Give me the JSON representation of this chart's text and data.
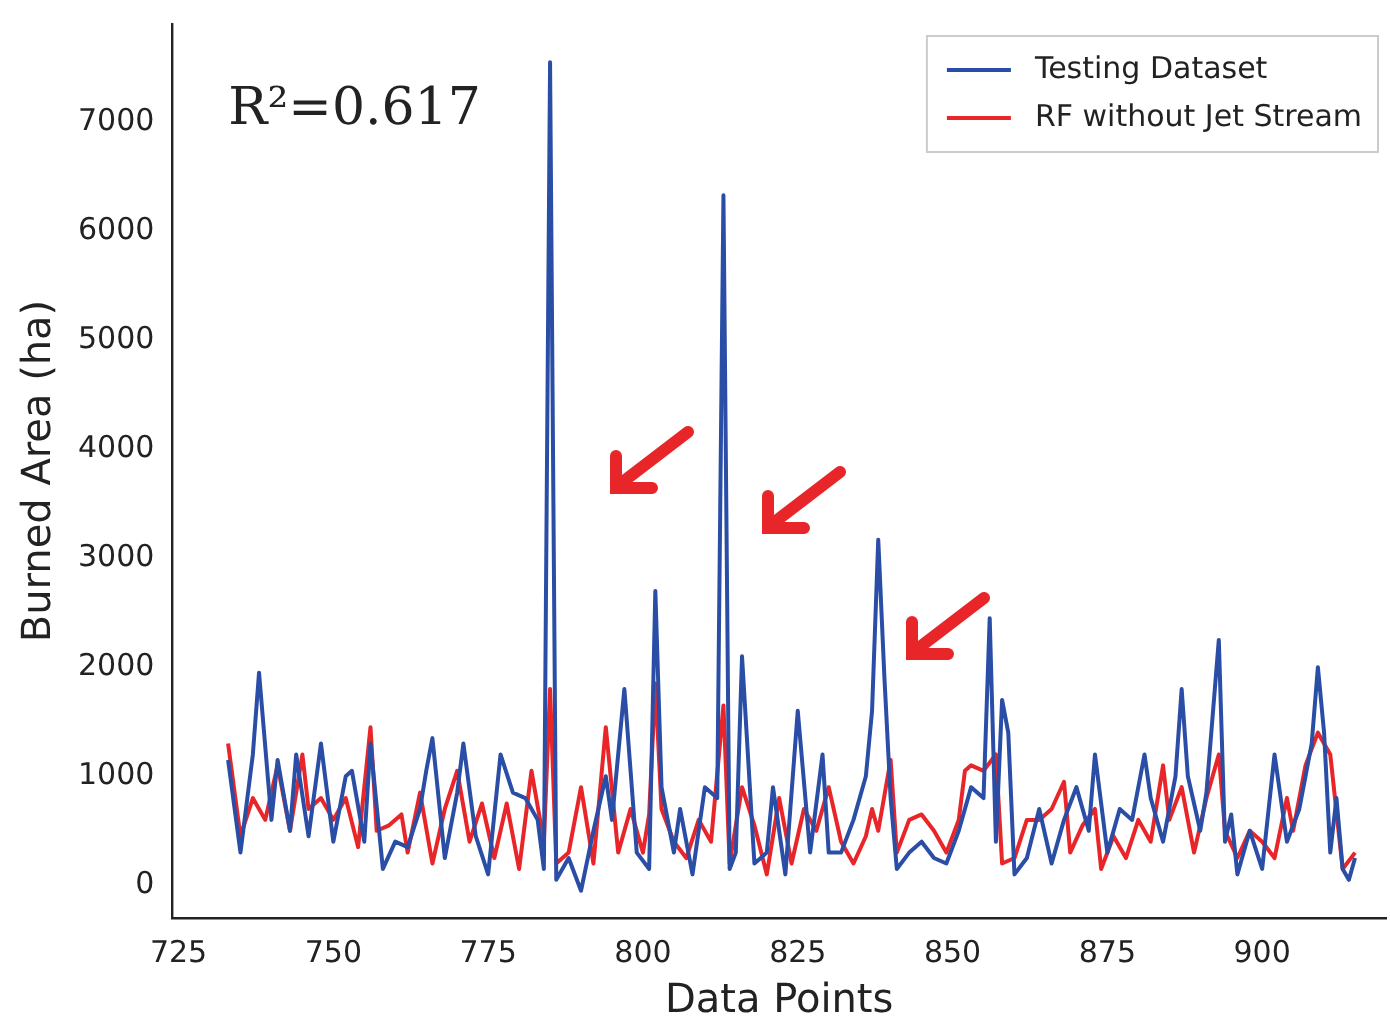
{
  "chart_data": {
    "type": "line",
    "xlabel": "Data Points",
    "ylabel": "Burned Area (ha)",
    "xlim": [
      724,
      920
    ],
    "ylim": [
      -300,
      7900
    ],
    "xticks": [
      725,
      750,
      775,
      800,
      825,
      850,
      875,
      900
    ],
    "yticks": [
      0,
      1000,
      2000,
      3000,
      4000,
      5000,
      6000,
      7000
    ],
    "grid": false,
    "legend": "top right",
    "marker": "none",
    "line_style": "solid",
    "annotations": [
      "R²=0.617"
    ],
    "series": [
      {
        "name": "Testing Dataset",
        "color": "#2a4ea6",
        "x": [
          733,
          735,
          737,
          738,
          740,
          741,
          743,
          744,
          746,
          748,
          750,
          752,
          753,
          755,
          756,
          758,
          760,
          762,
          764,
          765,
          766,
          768,
          770,
          771,
          773,
          775,
          777,
          779,
          781,
          783,
          784,
          785,
          786,
          788,
          790,
          792,
          794,
          795,
          797,
          799,
          801,
          802,
          803,
          805,
          806,
          808,
          810,
          812,
          813,
          814,
          815,
          816,
          818,
          820,
          821,
          823,
          825,
          827,
          829,
          830,
          832,
          834,
          836,
          837,
          838,
          839,
          840,
          841,
          843,
          845,
          847,
          849,
          851,
          853,
          855,
          856,
          857,
          858,
          859,
          860,
          862,
          864,
          866,
          868,
          870,
          872,
          873,
          875,
          877,
          879,
          881,
          882,
          884,
          886,
          887,
          888,
          890,
          891,
          893,
          894,
          895,
          896,
          898,
          900,
          902,
          904,
          906,
          908,
          909,
          910,
          911,
          912,
          913,
          914,
          915
        ],
        "values": [
          1150,
          300,
          1200,
          1950,
          600,
          1150,
          500,
          1200,
          450,
          1300,
          400,
          1000,
          1050,
          400,
          1300,
          150,
          400,
          350,
          700,
          1050,
          1350,
          250,
          850,
          1300,
          450,
          100,
          1200,
          850,
          800,
          600,
          150,
          7550,
          50,
          250,
          -50,
          500,
          1000,
          600,
          1800,
          300,
          150,
          2700,
          900,
          300,
          700,
          100,
          900,
          800,
          6330,
          150,
          300,
          2100,
          200,
          300,
          900,
          100,
          1600,
          300,
          1200,
          300,
          300,
          600,
          1000,
          1600,
          3170,
          1900,
          800,
          150,
          300,
          400,
          250,
          200,
          500,
          900,
          800,
          2450,
          400,
          1700,
          1400,
          100,
          250,
          700,
          200,
          600,
          900,
          500,
          1200,
          300,
          700,
          600,
          1200,
          800,
          400,
          1000,
          1800,
          1000,
          500,
          850,
          2250,
          400,
          650,
          100,
          500,
          150,
          1200,
          400,
          700,
          1300,
          2000,
          1400,
          300,
          800,
          150,
          50,
          250
        ]
      },
      {
        "name": "RF without Jet Stream",
        "color": "#e8262a",
        "x": [
          733,
          735,
          737,
          739,
          741,
          743,
          745,
          746,
          748,
          750,
          752,
          754,
          756,
          757,
          759,
          761,
          762,
          764,
          766,
          768,
          770,
          772,
          774,
          776,
          778,
          780,
          782,
          784,
          785,
          786,
          788,
          790,
          792,
          794,
          796,
          798,
          800,
          801,
          802,
          803,
          805,
          807,
          809,
          811,
          813,
          814,
          816,
          818,
          820,
          822,
          824,
          826,
          828,
          830,
          832,
          834,
          836,
          837,
          838,
          840,
          841,
          843,
          845,
          847,
          849,
          851,
          852,
          853,
          855,
          857,
          858,
          860,
          862,
          864,
          866,
          868,
          869,
          871,
          873,
          874,
          876,
          878,
          880,
          882,
          884,
          885,
          887,
          889,
          891,
          893,
          894,
          896,
          898,
          900,
          902,
          904,
          905,
          907,
          909,
          911,
          913,
          915
        ],
        "values": [
          1300,
          450,
          800,
          600,
          1100,
          500,
          1200,
          700,
          800,
          600,
          800,
          350,
          1450,
          500,
          550,
          650,
          300,
          850,
          200,
          700,
          1050,
          400,
          750,
          250,
          750,
          150,
          1050,
          400,
          1800,
          200,
          300,
          900,
          200,
          1450,
          300,
          700,
          300,
          650,
          1850,
          700,
          400,
          250,
          600,
          400,
          1650,
          200,
          900,
          550,
          100,
          800,
          200,
          700,
          500,
          900,
          400,
          200,
          450,
          700,
          500,
          1150,
          300,
          600,
          650,
          500,
          300,
          600,
          1050,
          1100,
          1050,
          1200,
          200,
          250,
          600,
          600,
          700,
          950,
          300,
          550,
          700,
          150,
          450,
          250,
          600,
          400,
          1100,
          600,
          900,
          300,
          800,
          1200,
          500,
          250,
          500,
          400,
          250,
          800,
          500,
          1100,
          1400,
          1200,
          150,
          300
        ]
      }
    ]
  }
}
